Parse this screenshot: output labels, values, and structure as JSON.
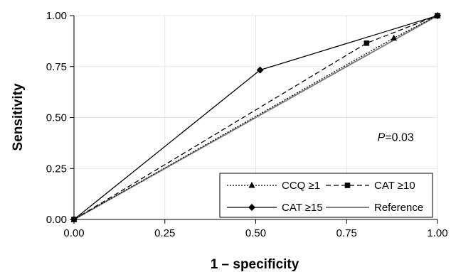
{
  "chart_data": {
    "type": "line",
    "xlabel": "1 – specificity",
    "ylabel": "Sensitivity",
    "xlim": [
      0,
      1
    ],
    "ylim": [
      0,
      1
    ],
    "x_ticks": [
      "0.00",
      "0.25",
      "0.50",
      "0.75",
      "1.00"
    ],
    "y_ticks": [
      "0.00",
      "0.25",
      "0.50",
      "0.75",
      "1.00"
    ],
    "grid": true,
    "legend_position": "bottom-right",
    "annotation": {
      "italic": "P",
      "rest": "=0.03",
      "x": 0.885,
      "y": 0.385
    },
    "series": [
      {
        "name": "CCQ ≥1",
        "style": "dotted",
        "marker": "triangle",
        "color": "#000000",
        "points": [
          [
            0,
            0
          ],
          [
            0.88,
            0.89
          ],
          [
            1,
            1
          ]
        ]
      },
      {
        "name": "CAT ≥10",
        "style": "dashed",
        "marker": "square",
        "color": "#000000",
        "points": [
          [
            0,
            0
          ],
          [
            0.805,
            0.865
          ],
          [
            1,
            1
          ]
        ]
      },
      {
        "name": "CAT ≥15",
        "style": "solid",
        "marker": "diamond",
        "color": "#000000",
        "points": [
          [
            0,
            0
          ],
          [
            0.512,
            0.733
          ],
          [
            1,
            1
          ]
        ]
      },
      {
        "name": "Reference",
        "style": "solid",
        "marker": "none",
        "color": "#808080",
        "points": [
          [
            0,
            0
          ],
          [
            1,
            1
          ]
        ]
      }
    ]
  }
}
